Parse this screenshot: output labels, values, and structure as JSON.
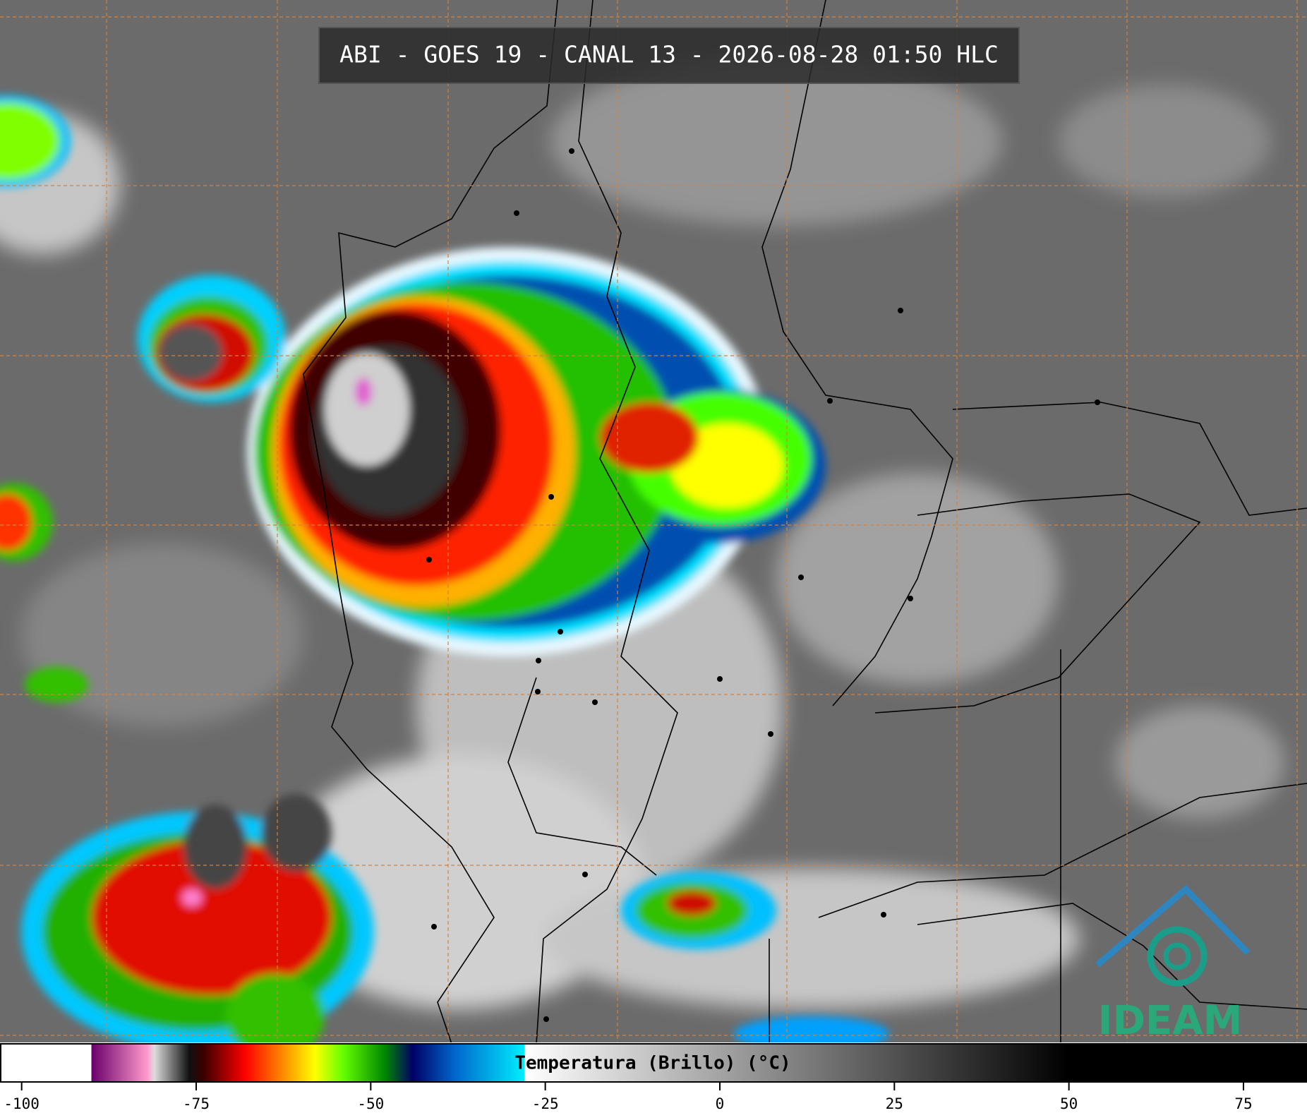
{
  "title": "ABI - GOES 19 - CANAL 13 - 2026-08-28 01:50 HLC",
  "colorbar": {
    "label": "Temperatura (Brillo) (°C)",
    "xlim": [
      -103,
      84
    ],
    "ticks": [
      -100,
      -75,
      -50,
      -25,
      0,
      25,
      50,
      75
    ],
    "colormap": [
      {
        "value": -103,
        "color": "#ffffff"
      },
      {
        "value": -90,
        "color": "#ffffff"
      },
      {
        "value": -90,
        "color": "#6a006a"
      },
      {
        "value": -82,
        "color": "#ff99cc"
      },
      {
        "value": -81,
        "color": "#dddddd"
      },
      {
        "value": -76,
        "color": "#111111"
      },
      {
        "value": -74,
        "color": "#3a0000"
      },
      {
        "value": -68,
        "color": "#ff0000"
      },
      {
        "value": -62,
        "color": "#ff9900"
      },
      {
        "value": -58,
        "color": "#ffff00"
      },
      {
        "value": -54,
        "color": "#66ff00"
      },
      {
        "value": -48,
        "color": "#008800"
      },
      {
        "value": -44,
        "color": "#000066"
      },
      {
        "value": -38,
        "color": "#0066cc"
      },
      {
        "value": -28,
        "color": "#00eeff"
      },
      {
        "value": -28,
        "color": "#ffffff"
      },
      {
        "value": 50,
        "color": "#000000"
      },
      {
        "value": 84,
        "color": "#000000"
      }
    ]
  },
  "logo": "IDEAM"
}
